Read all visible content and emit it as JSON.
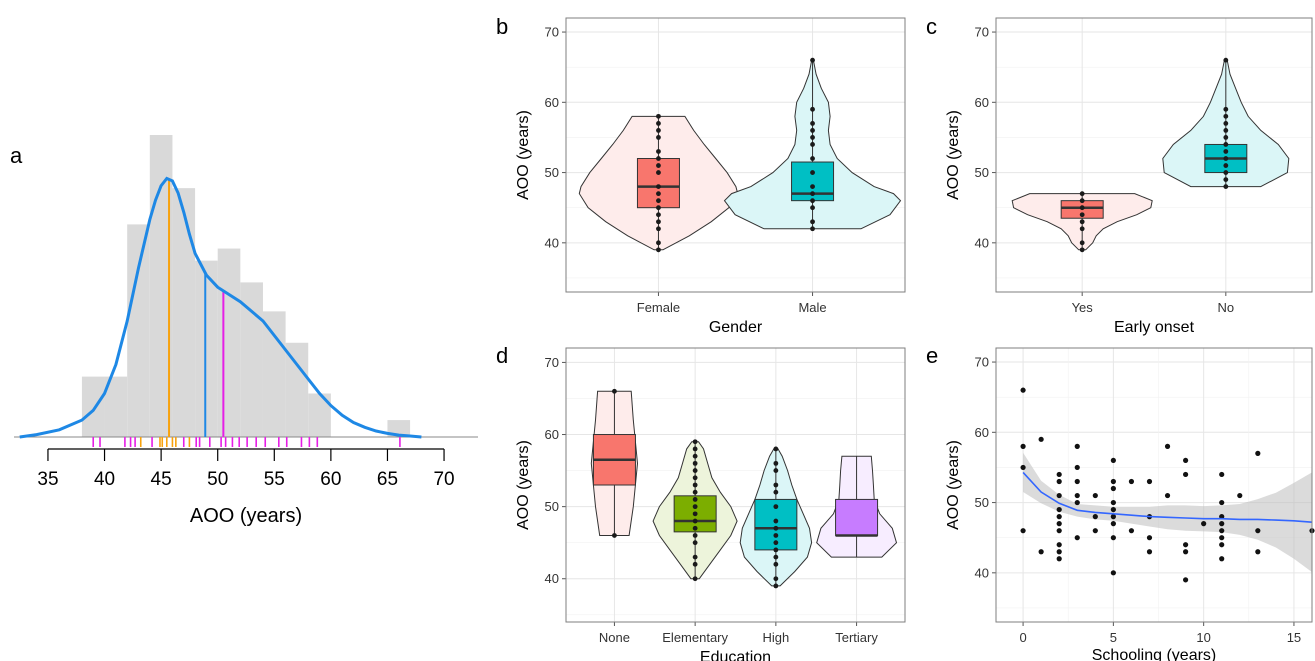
{
  "chart_data": [
    {
      "panel": "a",
      "type": "histogram",
      "xlabel": "AOO (years)",
      "xlim": [
        32,
        73
      ],
      "xticks": [
        35,
        40,
        45,
        50,
        55,
        60,
        65,
        70
      ],
      "histogram": {
        "bin_width": 2,
        "bins": [
          {
            "x0": 38,
            "height": 0.25
          },
          {
            "x0": 40,
            "height": 0.25
          },
          {
            "x0": 42,
            "height": 0.88
          },
          {
            "x0": 44,
            "height": 1.25
          },
          {
            "x0": 46,
            "height": 1.03
          },
          {
            "x0": 48,
            "height": 0.73
          },
          {
            "x0": 50,
            "height": 0.78
          },
          {
            "x0": 52,
            "height": 0.64
          },
          {
            "x0": 54,
            "height": 0.52
          },
          {
            "x0": 56,
            "height": 0.39
          },
          {
            "x0": 58,
            "height": 0.18
          },
          {
            "x0": 65,
            "height": 0.07
          }
        ]
      },
      "density_color": "#1E88E5",
      "density": {
        "x": [
          32.5,
          34,
          36,
          38,
          39,
          40,
          41,
          42,
          43,
          44,
          44.5,
          45,
          45.5,
          46,
          46.5,
          47,
          47.5,
          48,
          49,
          50,
          51,
          52,
          53,
          54,
          55,
          56,
          57,
          58,
          59,
          60,
          61,
          62,
          63,
          64,
          65,
          66,
          67,
          68
        ],
        "y": [
          0.0,
          0.01,
          0.03,
          0.07,
          0.11,
          0.18,
          0.3,
          0.48,
          0.7,
          0.9,
          0.98,
          1.04,
          1.07,
          1.06,
          1.01,
          0.93,
          0.84,
          0.76,
          0.67,
          0.62,
          0.59,
          0.56,
          0.52,
          0.48,
          0.42,
          0.36,
          0.3,
          0.24,
          0.18,
          0.13,
          0.09,
          0.06,
          0.04,
          0.025,
          0.015,
          0.008,
          0.004,
          0.0
        ]
      },
      "vlines": [
        {
          "x": 45.7,
          "color": "#F7A20E"
        },
        {
          "x": 48.9,
          "color": "#1E88E5"
        },
        {
          "x": 50.5,
          "color": "#E61EE6"
        }
      ],
      "rug": [
        {
          "x": 39.0,
          "color": "#E61EE6"
        },
        {
          "x": 39.6,
          "color": "#E61EE6"
        },
        {
          "x": 41.8,
          "color": "#E61EE6"
        },
        {
          "x": 42.3,
          "color": "#E61EE6"
        },
        {
          "x": 42.7,
          "color": "#E61EE6"
        },
        {
          "x": 43.2,
          "color": "#F7A20E"
        },
        {
          "x": 44.2,
          "color": "#E61EE6"
        },
        {
          "x": 44.9,
          "color": "#F7A20E"
        },
        {
          "x": 45.1,
          "color": "#F7A20E"
        },
        {
          "x": 45.5,
          "color": "#F7A20E"
        },
        {
          "x": 46.0,
          "color": "#F7A20E"
        },
        {
          "x": 46.3,
          "color": "#F7A20E"
        },
        {
          "x": 47.0,
          "color": "#E61EE6"
        },
        {
          "x": 47.5,
          "color": "#F7A20E"
        },
        {
          "x": 48.1,
          "color": "#E61EE6"
        },
        {
          "x": 48.4,
          "color": "#E61EE6"
        },
        {
          "x": 49.3,
          "color": "#E61EE6"
        },
        {
          "x": 50.3,
          "color": "#E61EE6"
        },
        {
          "x": 50.7,
          "color": "#E61EE6"
        },
        {
          "x": 51.3,
          "color": "#E61EE6"
        },
        {
          "x": 51.9,
          "color": "#E61EE6"
        },
        {
          "x": 52.6,
          "color": "#E61EE6"
        },
        {
          "x": 53.4,
          "color": "#E61EE6"
        },
        {
          "x": 54.2,
          "color": "#E61EE6"
        },
        {
          "x": 55.4,
          "color": "#E61EE6"
        },
        {
          "x": 56.1,
          "color": "#E61EE6"
        },
        {
          "x": 57.4,
          "color": "#E61EE6"
        },
        {
          "x": 58.1,
          "color": "#E61EE6"
        },
        {
          "x": 58.8,
          "color": "#E61EE6"
        },
        {
          "x": 66.1,
          "color": "#E61EE6"
        }
      ]
    },
    {
      "panel": "b",
      "type": "violin",
      "xlabel": "Gender",
      "ylabel": "AOO (years)",
      "ylim": [
        33,
        72
      ],
      "yticks": [
        40,
        50,
        60,
        70
      ],
      "groups": [
        {
          "name": "Female",
          "color": "#F8766D",
          "box": {
            "q1": 45,
            "median": 48,
            "q3": 52,
            "whisker_low": 39,
            "whisker_high": 58
          },
          "violin": {
            "ys": [
              39,
              41,
              43,
              45,
              47,
              48,
              50,
              52,
              54,
              56,
              58
            ],
            "widths": [
              0.05,
              0.35,
              0.6,
              0.8,
              0.9,
              0.88,
              0.78,
              0.65,
              0.52,
              0.4,
              0.3
            ]
          },
          "points": [
            39,
            40,
            42,
            43,
            44,
            45,
            46,
            47,
            48,
            50,
            51,
            52,
            53,
            55,
            56,
            57,
            58
          ]
        },
        {
          "name": "Male",
          "color": "#00BFC4",
          "box": {
            "q1": 46,
            "median": 47,
            "q3": 51.5,
            "whisker_low": 42,
            "whisker_high": 66
          },
          "violin": {
            "ys": [
              42,
              44,
              46,
              47,
              48,
              50,
              52,
              54,
              56,
              58,
              60,
              62,
              64,
              66
            ],
            "widths": [
              0.55,
              0.88,
              1.0,
              0.92,
              0.7,
              0.45,
              0.28,
              0.2,
              0.18,
              0.2,
              0.18,
              0.1,
              0.04,
              0.01
            ]
          },
          "points": [
            42,
            43,
            45,
            46,
            47,
            48,
            50,
            52,
            54,
            55,
            56,
            57,
            59,
            66
          ]
        }
      ]
    },
    {
      "panel": "c",
      "type": "violin",
      "xlabel": "Early onset",
      "ylabel": "AOO (years)",
      "ylim": [
        33,
        72
      ],
      "yticks": [
        40,
        50,
        60,
        70
      ],
      "groups": [
        {
          "name": "Yes",
          "color": "#F8766D",
          "box": {
            "q1": 43.5,
            "median": 45,
            "q3": 46,
            "whisker_low": 39,
            "whisker_high": 47
          },
          "violin": {
            "ys": [
              39,
              40,
              41,
              42,
              43,
              44,
              45,
              46,
              47
            ],
            "widths": [
              0.05,
              0.15,
              0.2,
              0.3,
              0.5,
              0.78,
              0.98,
              1.0,
              0.75
            ]
          },
          "points": [
            39,
            40,
            42,
            43,
            44,
            45,
            46,
            47
          ]
        },
        {
          "name": "No",
          "color": "#00BFC4",
          "box": {
            "q1": 50,
            "median": 52,
            "q3": 54,
            "whisker_low": 48,
            "whisker_high": 66
          },
          "violin": {
            "ys": [
              48,
              50,
              52,
              54,
              56,
              58,
              60,
              62,
              64,
              66
            ],
            "widths": [
              0.5,
              0.88,
              0.9,
              0.75,
              0.5,
              0.32,
              0.22,
              0.14,
              0.06,
              0.02
            ]
          },
          "points": [
            48,
            49,
            50,
            51,
            52,
            53,
            54,
            55,
            56,
            57,
            58,
            59,
            66
          ]
        }
      ]
    },
    {
      "panel": "d",
      "type": "violin",
      "xlabel": "Education",
      "ylabel": "AOO (years)",
      "ylim": [
        34,
        72
      ],
      "yticks": [
        40,
        50,
        60,
        70
      ],
      "groups": [
        {
          "name": "None",
          "color": "#F8766D",
          "box": {
            "q1": 53,
            "median": 56.5,
            "q3": 60,
            "whisker_low": 46,
            "whisker_high": 66
          },
          "violin": {
            "ys": [
              46,
              50,
              53,
              56,
              59,
              62,
              66
            ],
            "widths": [
              0.35,
              0.45,
              0.5,
              0.55,
              0.5,
              0.45,
              0.4
            ]
          },
          "points": [
            46,
            66
          ]
        },
        {
          "name": "Elementary",
          "color": "#7CAE00",
          "box": {
            "q1": 46.5,
            "median": 48,
            "q3": 51.5,
            "whisker_low": 40,
            "whisker_high": 59
          },
          "violin": {
            "ys": [
              40,
              42,
              44,
              46,
              48,
              50,
              52,
              54,
              56,
              58,
              59
            ],
            "widths": [
              0.1,
              0.35,
              0.6,
              0.85,
              1.0,
              0.85,
              0.6,
              0.4,
              0.3,
              0.2,
              0.08
            ]
          },
          "points": [
            40,
            42,
            43,
            45,
            46,
            47,
            48,
            49,
            50,
            51,
            52,
            53,
            54,
            55,
            56,
            57,
            58,
            59
          ]
        },
        {
          "name": "High",
          "color": "#00BFC4",
          "box": {
            "q1": 44,
            "median": 47,
            "q3": 51,
            "whisker_low": 39,
            "whisker_high": 58
          },
          "violin": {
            "ys": [
              39,
              41,
              43,
              45,
              47,
              49,
              51,
              53,
              55,
              57,
              58
            ],
            "widths": [
              0.1,
              0.45,
              0.75,
              0.85,
              0.8,
              0.65,
              0.5,
              0.38,
              0.28,
              0.15,
              0.05
            ]
          },
          "points": [
            39,
            40,
            42,
            43,
            44,
            45,
            46,
            47,
            48,
            50,
            52,
            53,
            55,
            56,
            58
          ]
        },
        {
          "name": "Tertiary",
          "color": "#C77CFF",
          "box": {
            "q1": 46,
            "median": 46,
            "q3": 51,
            "whisker_low": 43,
            "whisker_high": 57
          },
          "violin": {
            "ys": [
              43,
              45,
              47,
              49,
              51,
              53,
              55,
              57
            ],
            "widths": [
              0.6,
              0.95,
              0.85,
              0.55,
              0.42,
              0.4,
              0.38,
              0.35
            ]
          },
          "points": []
        }
      ]
    },
    {
      "panel": "e",
      "type": "scatter",
      "xlabel": "Schooling (years)",
      "ylabel": "AOO (years)",
      "xlim": [
        -1.5,
        16
      ],
      "ylim": [
        33,
        72
      ],
      "xticks": [
        0,
        5,
        10,
        15
      ],
      "yticks": [
        40,
        50,
        60,
        70
      ],
      "smooth_color": "#3366FF",
      "points": [
        [
          0,
          66
        ],
        [
          0,
          58
        ],
        [
          0,
          55
        ],
        [
          0,
          46
        ],
        [
          1,
          59
        ],
        [
          1,
          43
        ],
        [
          2,
          54
        ],
        [
          2,
          53
        ],
        [
          2,
          51
        ],
        [
          2,
          49
        ],
        [
          2,
          48
        ],
        [
          2,
          47
        ],
        [
          2,
          46
        ],
        [
          2,
          44
        ],
        [
          2,
          43
        ],
        [
          2,
          42
        ],
        [
          3,
          58
        ],
        [
          3,
          55
        ],
        [
          3,
          53
        ],
        [
          3,
          51
        ],
        [
          3,
          50
        ],
        [
          3,
          45
        ],
        [
          4,
          51
        ],
        [
          4,
          48
        ],
        [
          4,
          46
        ],
        [
          5,
          56
        ],
        [
          5,
          53
        ],
        [
          5,
          52
        ],
        [
          5,
          50
        ],
        [
          5,
          49
        ],
        [
          5,
          48
        ],
        [
          5,
          47
        ],
        [
          5,
          45
        ],
        [
          5,
          40
        ],
        [
          6,
          53
        ],
        [
          6,
          46
        ],
        [
          7,
          53
        ],
        [
          7,
          48
        ],
        [
          7,
          45
        ],
        [
          7,
          43
        ],
        [
          8,
          58
        ],
        [
          8,
          51
        ],
        [
          9,
          56
        ],
        [
          9,
          54
        ],
        [
          9,
          44
        ],
        [
          9,
          43
        ],
        [
          9,
          39
        ],
        [
          10,
          47
        ],
        [
          11,
          54
        ],
        [
          11,
          50
        ],
        [
          11,
          48
        ],
        [
          11,
          47
        ],
        [
          11,
          46
        ],
        [
          11,
          45
        ],
        [
          11,
          44
        ],
        [
          11,
          42
        ],
        [
          12,
          51
        ],
        [
          13,
          57
        ],
        [
          13,
          46
        ],
        [
          13,
          43
        ],
        [
          16,
          46
        ]
      ],
      "smooth": {
        "x": [
          0,
          1,
          2,
          3,
          4,
          5,
          6,
          7,
          8,
          9,
          10,
          11,
          12,
          13,
          14,
          15,
          16
        ],
        "y": [
          54.3,
          51.5,
          49.9,
          48.9,
          48.6,
          48.4,
          48.2,
          48.0,
          47.9,
          47.8,
          47.7,
          47.7,
          47.6,
          47.6,
          47.5,
          47.4,
          47.2
        ],
        "lower": [
          51.5,
          49.9,
          48.7,
          48.0,
          47.6,
          47.4,
          47.0,
          46.6,
          46.2,
          46.0,
          45.9,
          45.8,
          45.4,
          44.7,
          43.6,
          42.0,
          40.1
        ],
        "upper": [
          57.1,
          53.1,
          51.1,
          49.8,
          49.6,
          49.4,
          49.4,
          49.4,
          49.6,
          49.6,
          49.5,
          49.6,
          49.8,
          50.5,
          51.4,
          52.8,
          54.3
        ]
      }
    }
  ]
}
